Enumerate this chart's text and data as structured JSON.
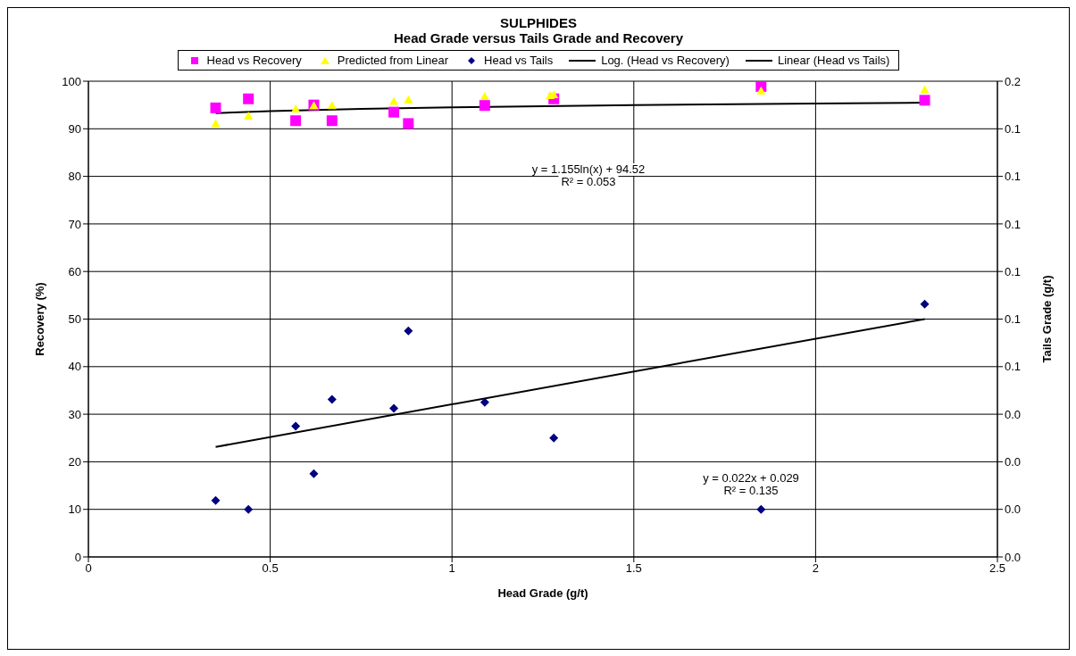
{
  "chart_data": {
    "type": "scatter",
    "title": "SULPHIDES",
    "subtitle": "Head Grade versus Tails Grade and Recovery",
    "xlabel": "Head Grade  (g/t)",
    "ylabel": "Recovery  (%)",
    "y2label": "Tails Grade  (g/t)",
    "xlim": [
      0,
      2.5
    ],
    "xticks": [
      0,
      0.5,
      1,
      1.5,
      2,
      2.5
    ],
    "ylim": [
      0,
      100
    ],
    "yticks": [
      0,
      10,
      20,
      30,
      40,
      50,
      60,
      70,
      80,
      90,
      100
    ],
    "y2lim": [
      0,
      0.16
    ],
    "y2ticks": [
      {
        "value": 0,
        "label": "0.0"
      },
      {
        "value": 0.016,
        "label": "0.0"
      },
      {
        "value": 0.032,
        "label": "0.0"
      },
      {
        "value": 0.048,
        "label": "0.0"
      },
      {
        "value": 0.064,
        "label": "0.1"
      },
      {
        "value": 0.08,
        "label": "0.1"
      },
      {
        "value": 0.096,
        "label": "0.1"
      },
      {
        "value": 0.112,
        "label": "0.1"
      },
      {
        "value": 0.128,
        "label": "0.1"
      },
      {
        "value": 0.144,
        "label": "0.1"
      },
      {
        "value": 0.16,
        "label": "0.2"
      }
    ],
    "grid": true,
    "legend": "top",
    "series": [
      {
        "name": "Head vs Recovery",
        "marker": "square",
        "color": "#ff00ff",
        "x": [
          0.35,
          0.44,
          0.57,
          0.62,
          0.67,
          0.84,
          0.88,
          1.09,
          1.28,
          1.85,
          2.3
        ],
        "values": [
          94.4,
          96.3,
          91.7,
          95.0,
          91.7,
          93.5,
          91.1,
          94.9,
          96.3,
          98.9,
          96.0
        ]
      },
      {
        "name": "Predicted from Linear",
        "marker": "triangle",
        "color": "#ffff00",
        "x": [
          0.35,
          0.44,
          0.57,
          0.62,
          0.67,
          0.84,
          0.88,
          1.09,
          1.27,
          1.28,
          1.85,
          2.3
        ],
        "values": [
          91.1,
          92.7,
          94.2,
          94.9,
          94.9,
          95.8,
          96.1,
          96.8,
          97.0,
          97.2,
          98.0,
          98.2
        ]
      },
      {
        "name": "Head vs Tails",
        "marker": "diamond",
        "color": "#000080",
        "axis": "y2",
        "x": [
          0.35,
          0.44,
          0.57,
          0.62,
          0.67,
          0.84,
          0.88,
          1.09,
          1.28,
          1.85,
          2.3
        ],
        "values": [
          0.019,
          0.016,
          0.044,
          0.028,
          0.053,
          0.05,
          0.076,
          0.052,
          0.04,
          0.016,
          0.085
        ]
      },
      {
        "name": "Log. (Head vs Recovery)",
        "type": "line",
        "marker": "none",
        "color": "#000000",
        "x": [
          0.35,
          0.5,
          0.75,
          1,
          1.5,
          2,
          2.3
        ],
        "values": [
          93.3,
          93.7,
          94.2,
          94.5,
          95.0,
          95.3,
          95.5
        ]
      },
      {
        "name": "Linear (Head vs Tails)",
        "type": "line",
        "marker": "none",
        "color": "#000000",
        "axis": "y2",
        "x": [
          0.35,
          2.3
        ],
        "values": [
          0.037,
          0.08
        ]
      }
    ],
    "annotations": [
      "y = 1.155ln(x)  + 94.52",
      "R² = 0.053",
      "y = 0.022x  + 0.029",
      "R² = 0.135"
    ]
  }
}
